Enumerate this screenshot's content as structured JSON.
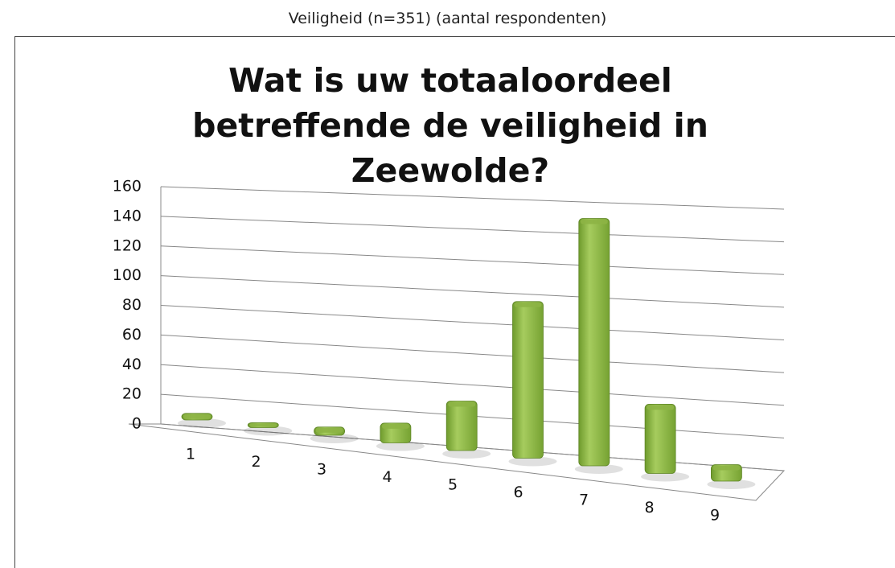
{
  "chart_data": {
    "type": "bar",
    "subtitle": "Veiligheid (n=351) (aantal respondenten)",
    "title": "Wat is uw totaaloordeel betreffende de veiligheid in Zeewolde?",
    "categories": [
      "1",
      "2",
      "3",
      "4",
      "5",
      "6",
      "7",
      "8",
      "9"
    ],
    "values": [
      4,
      3,
      5,
      12,
      30,
      95,
      150,
      42,
      10
    ],
    "color": "#8db445",
    "ylim": [
      0,
      160
    ],
    "yticks": [
      0,
      20,
      40,
      60,
      80,
      100,
      120,
      140,
      160
    ],
    "grid": true
  }
}
